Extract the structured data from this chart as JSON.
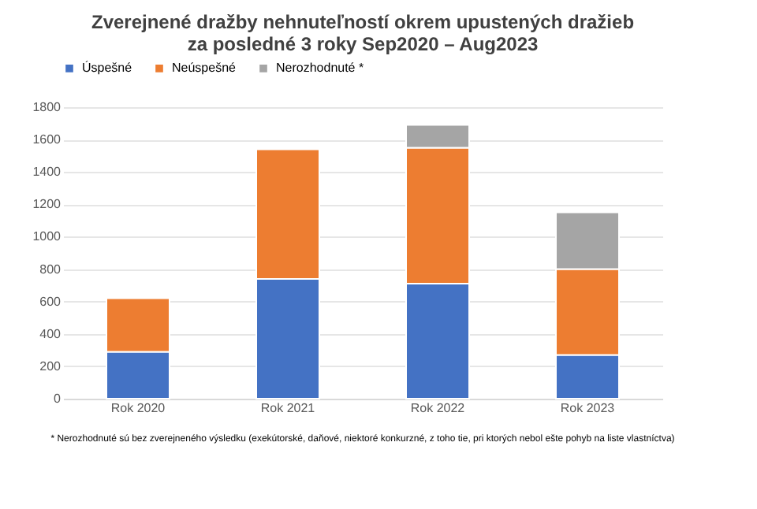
{
  "chart_data": {
    "type": "bar",
    "title": [
      "Zverejnené dražby nehnuteľností okrem upustených dražieb",
      "za posledné 3 roky Sep2020 – Aug2023"
    ],
    "categories": [
      "Rok 2020",
      "Rok 2021",
      "Rok 2022",
      "Rok 2023"
    ],
    "stacked": true,
    "series": [
      {
        "name": "Úspešné",
        "color": "#4472c4",
        "values": [
          290,
          740,
          710,
          270
        ]
      },
      {
        "name": "Neúspešné",
        "color": "#ed7d31",
        "values": [
          330,
          800,
          840,
          530
        ]
      },
      {
        "name": "Nerozhodnuté *",
        "color": "#a5a5a5",
        "values": [
          null,
          null,
          140,
          350
        ]
      }
    ],
    "ylim": [
      0,
      1800
    ],
    "yticks": [
      0,
      200,
      400,
      600,
      800,
      1000,
      1200,
      1400,
      1600,
      1800
    ],
    "grid": "y",
    "legend": "top",
    "annotations": [
      "* Nerozhodnuté sú bez zverejneného výsledku (exekútorské, daňové, niektoré konkurzné, z toho tie, pri ktorých nebol ešte pohyb na liste vlastníctva)"
    ]
  }
}
